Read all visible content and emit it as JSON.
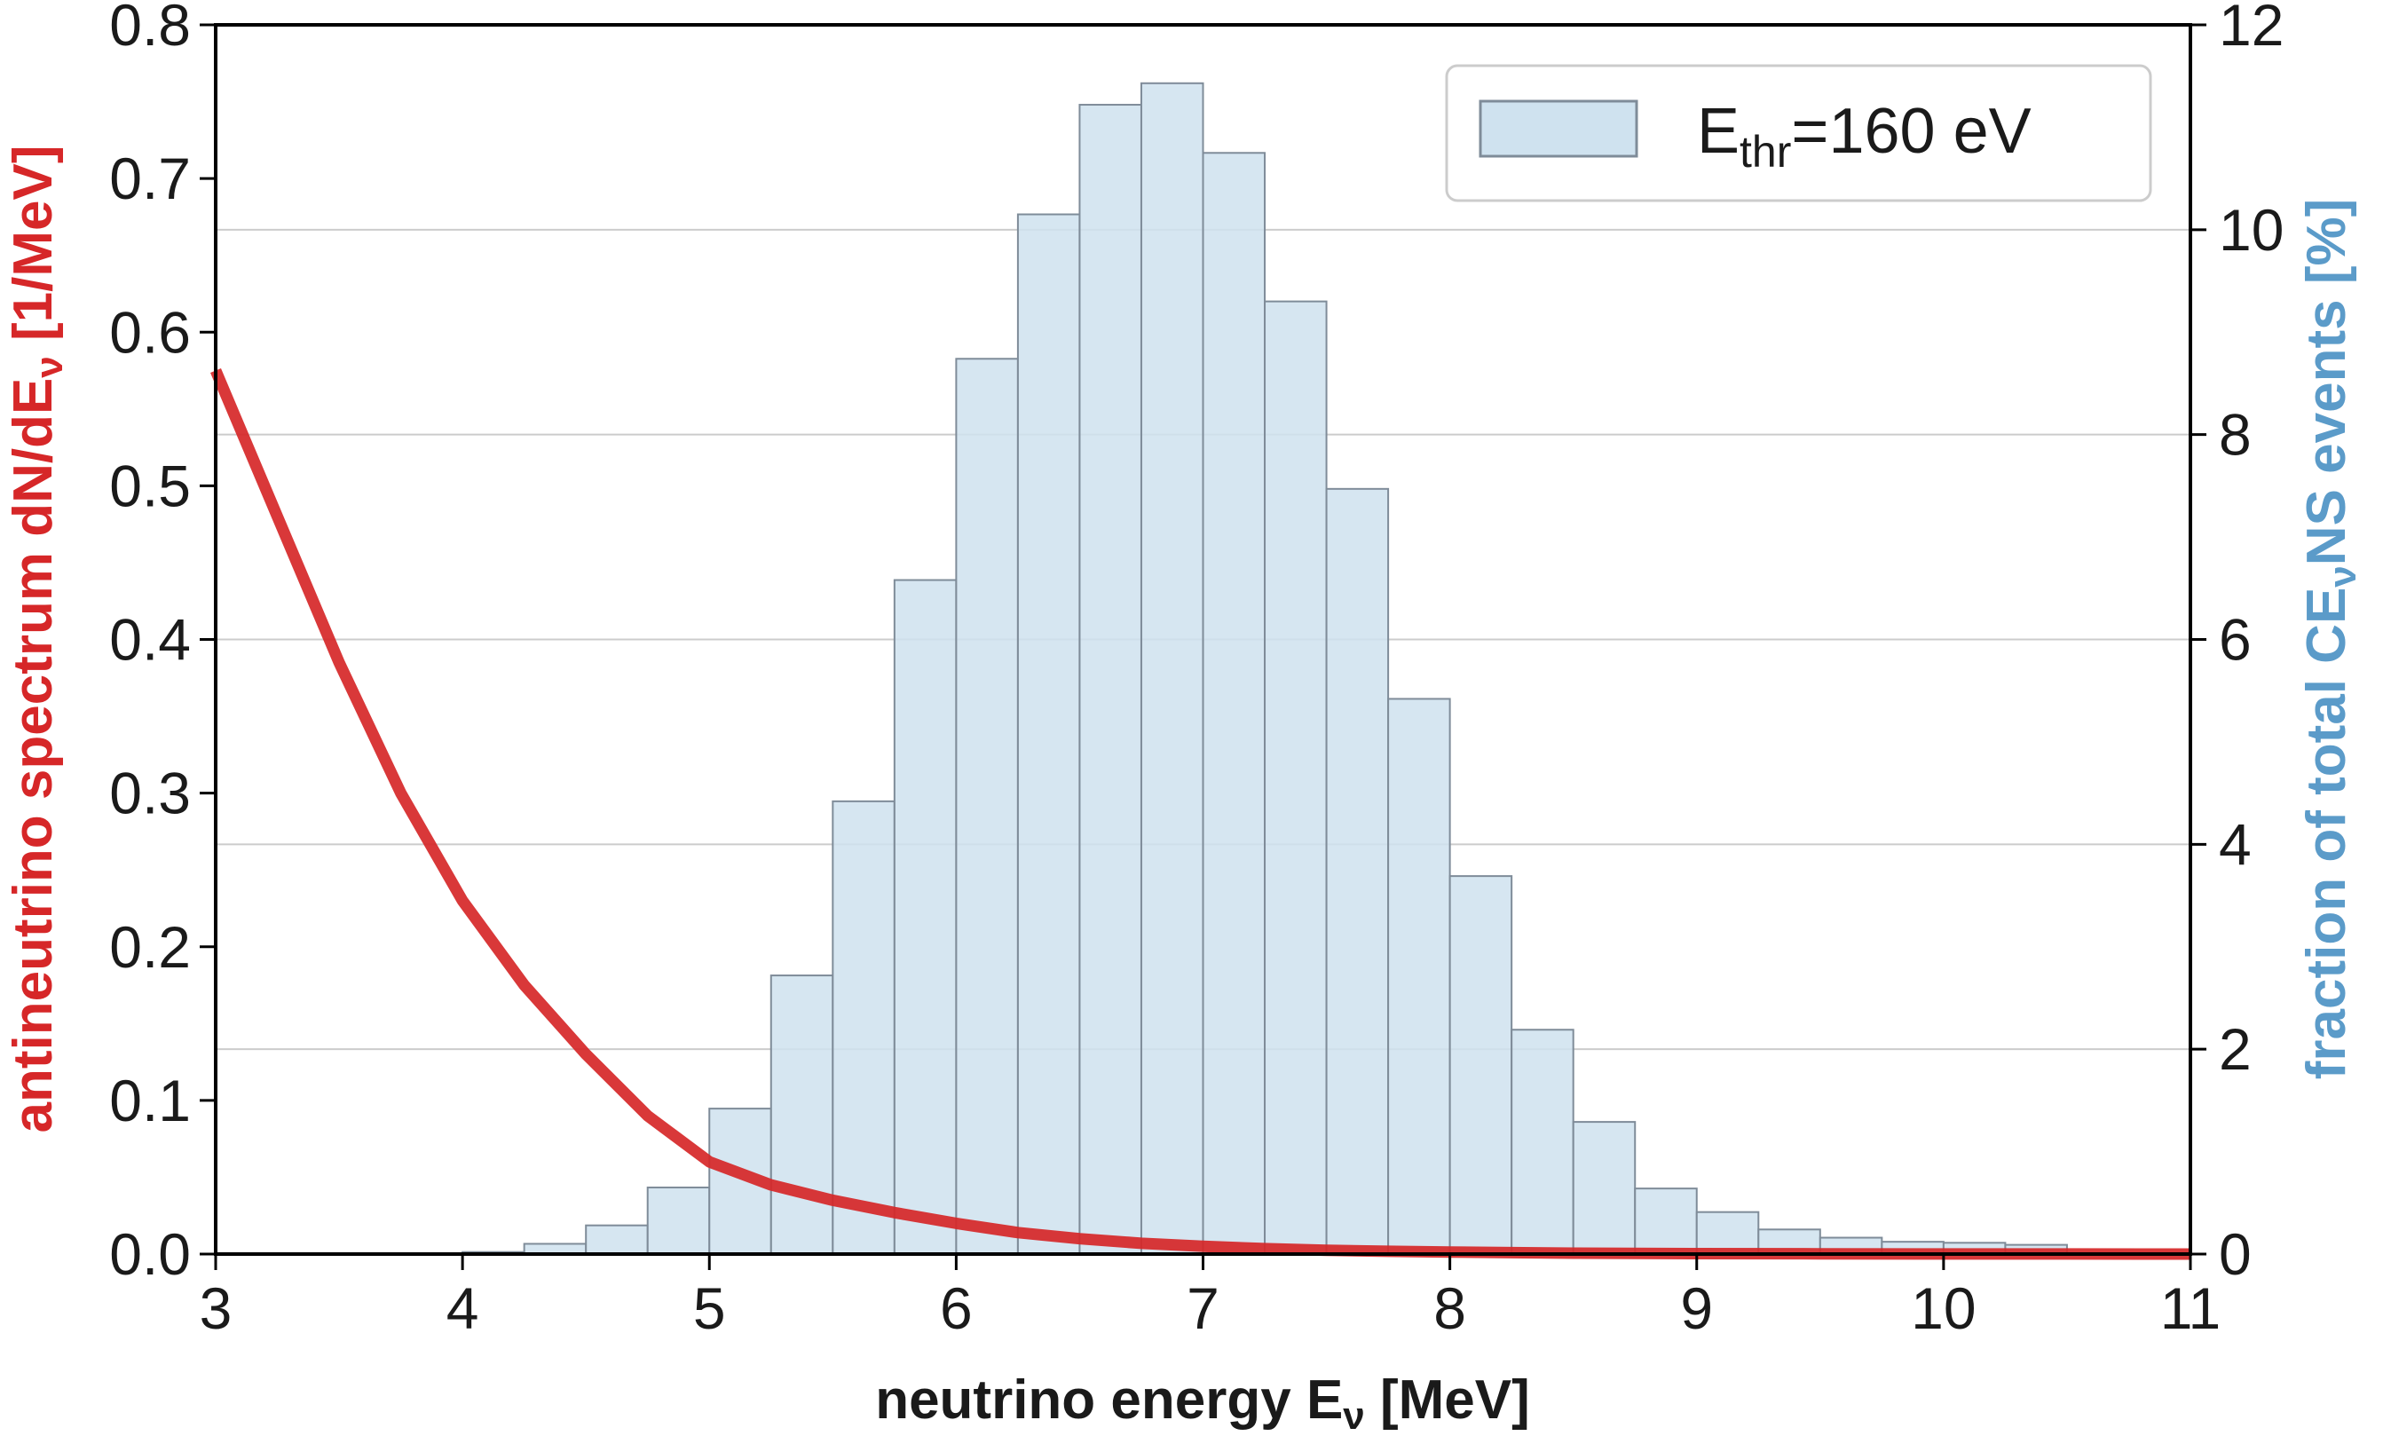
{
  "chart_data": {
    "type": "bar",
    "title": "",
    "xlabel": "neutrino energy E",
    "xlabel_sub": "ν",
    "xlabel_unit": " [MeV]",
    "xlim": [
      3,
      11
    ],
    "x_ticks": [
      3,
      4,
      5,
      6,
      7,
      8,
      9,
      10,
      11
    ],
    "grid": "horizontal gridlines at right-axis ticks",
    "left_axis": {
      "label_main": "antineutrino spectrum dN/dE",
      "label_sub": "ν",
      "label_unit": "  [1/MeV]",
      "color": "#d62728",
      "ylim": [
        0,
        0.8
      ],
      "ticks": [
        0.0,
        0.1,
        0.2,
        0.3,
        0.4,
        0.5,
        0.6,
        0.7,
        0.8
      ],
      "tick_labels": [
        "0.0",
        "0.1",
        "0.2",
        "0.3",
        "0.4",
        "0.5",
        "0.6",
        "0.7",
        "0.8"
      ]
    },
    "right_axis": {
      "label_main": "fraction of total CE",
      "label_sub": "ν",
      "label_rest": "NS events [%]",
      "color": "#5b9bc9",
      "ylim": [
        0,
        12
      ],
      "ticks": [
        0,
        2,
        4,
        6,
        8,
        10,
        12
      ],
      "tick_labels": [
        "0",
        "2",
        "4",
        "6",
        "8",
        "10",
        "12"
      ]
    },
    "series": [
      {
        "name": "antineutrino spectrum",
        "kind": "line",
        "axis": "left",
        "color": "#d62728",
        "x": [
          3.0,
          3.25,
          3.5,
          3.75,
          4.0,
          4.25,
          4.5,
          4.75,
          5.0,
          5.25,
          5.5,
          5.75,
          6.0,
          6.25,
          6.5,
          6.75,
          7.0,
          7.25,
          7.5,
          7.75,
          8.0,
          8.25,
          8.5,
          8.75,
          9.0,
          9.5,
          10.0,
          10.5,
          11.0
        ],
        "values": [
          0.575,
          0.48,
          0.385,
          0.3,
          0.23,
          0.175,
          0.13,
          0.09,
          0.06,
          0.045,
          0.035,
          0.027,
          0.02,
          0.014,
          0.01,
          0.007,
          0.005,
          0.0035,
          0.0025,
          0.0018,
          0.0013,
          0.0009,
          0.0006,
          0.0004,
          0.0003,
          0.00015,
          8e-05,
          4e-05,
          2e-05
        ]
      },
      {
        "name": "E_thr=160 eV",
        "kind": "histogram",
        "axis": "right",
        "color": "#cfe2ef",
        "edge_color": "#7f8c99",
        "bin_edges": [
          4.0,
          4.25,
          4.5,
          4.75,
          5.0,
          5.25,
          5.5,
          5.75,
          6.0,
          6.25,
          6.5,
          6.75,
          7.0,
          7.25,
          7.5,
          7.75,
          8.0,
          8.25,
          8.5,
          8.75,
          9.0,
          9.25,
          9.5,
          9.75,
          10.0,
          10.25,
          10.5
        ],
        "values": [
          0.02,
          0.1,
          0.28,
          0.65,
          1.42,
          2.72,
          4.42,
          6.58,
          8.74,
          10.15,
          11.22,
          11.43,
          10.75,
          9.3,
          7.47,
          5.42,
          3.69,
          2.19,
          1.29,
          0.64,
          0.41,
          0.24,
          0.16,
          0.12,
          0.11,
          0.09
        ]
      }
    ],
    "legend": {
      "position": "top-right",
      "label_main": "E",
      "label_sub": "thr",
      "label_rest": "=160 eV"
    }
  }
}
